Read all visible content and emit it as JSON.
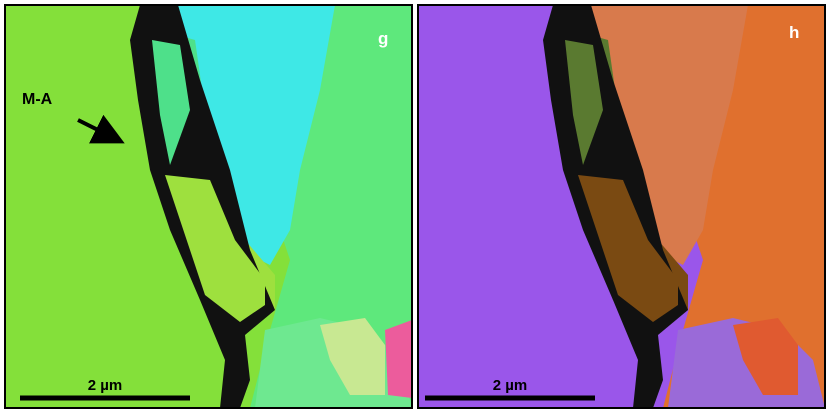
{
  "panels": [
    {
      "label": "g",
      "scale_bar": "2 µm",
      "annotation": "M-A"
    },
    {
      "label": "h",
      "scale_bar": "2 µm"
    }
  ]
}
